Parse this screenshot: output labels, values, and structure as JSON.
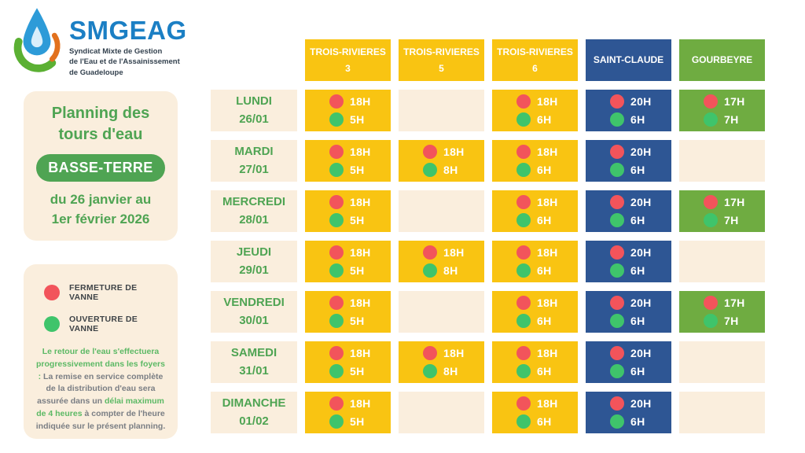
{
  "logo": {
    "brand": "SMGEAG",
    "subtitle_line1": "Syndicat Mixte de Gestion",
    "subtitle_line2": "de l'Eau et de l'Assainissement",
    "subtitle_line3": "de Guadeloupe"
  },
  "panel": {
    "title_line1": "Planning des",
    "title_line2": "tours d'eau",
    "region_badge": "BASSE-TERRE",
    "dates_line1": "du 26 janvier au",
    "dates_line2": "1er février 2026"
  },
  "legend": {
    "closed_label": "FERMETURE DE VANNE",
    "open_label": "OUVERTURE DE VANNE",
    "note_segments": [
      {
        "text": "Le retour de l'eau s'effectuera progressivement dans les foyers :",
        "emphasis": true
      },
      {
        "text": " La remise en service complète de la distribution d'eau sera assurée dans un ",
        "emphasis": false
      },
      {
        "text": "délai maximum de 4 heures",
        "emphasis": true
      },
      {
        "text": " à compter de l'heure indiquée sur le présent planning.",
        "emphasis": false
      }
    ]
  },
  "schedule": {
    "columns": [
      {
        "label_lines": [
          "TROIS-RIVIERES",
          "3"
        ],
        "color": "#F9C412"
      },
      {
        "label_lines": [
          "TROIS-RIVIERES",
          "5"
        ],
        "color": "#F9C412"
      },
      {
        "label_lines": [
          "TROIS-RIVIERES",
          "6"
        ],
        "color": "#F9C412"
      },
      {
        "label_lines": [
          "SAINT-CLAUDE"
        ],
        "color": "#2E5694"
      },
      {
        "label_lines": [
          "GOURBEYRE"
        ],
        "color": "#6FAC41"
      }
    ],
    "rows": [
      {
        "day": "LUNDI",
        "date": "26/01",
        "cells": [
          {
            "close": "18H",
            "open": "5H"
          },
          null,
          {
            "close": "18H",
            "open": "6H"
          },
          {
            "close": "20H",
            "open": "6H"
          },
          {
            "close": "17H",
            "open": "7H"
          }
        ]
      },
      {
        "day": "MARDI",
        "date": "27/01",
        "cells": [
          {
            "close": "18H",
            "open": "5H"
          },
          {
            "close": "18H",
            "open": "8H"
          },
          {
            "close": "18H",
            "open": "6H"
          },
          {
            "close": "20H",
            "open": "6H"
          },
          null
        ]
      },
      {
        "day": "MERCREDI",
        "date": "28/01",
        "cells": [
          {
            "close": "18H",
            "open": "5H"
          },
          null,
          {
            "close": "18H",
            "open": "6H"
          },
          {
            "close": "20H",
            "open": "6H"
          },
          {
            "close": "17H",
            "open": "7H"
          }
        ]
      },
      {
        "day": "JEUDI",
        "date": "29/01",
        "cells": [
          {
            "close": "18H",
            "open": "5H"
          },
          {
            "close": "18H",
            "open": "8H"
          },
          {
            "close": "18H",
            "open": "6H"
          },
          {
            "close": "20H",
            "open": "6H"
          },
          null
        ]
      },
      {
        "day": "VENDREDI",
        "date": "30/01",
        "cells": [
          {
            "close": "18H",
            "open": "5H"
          },
          null,
          {
            "close": "18H",
            "open": "6H"
          },
          {
            "close": "20H",
            "open": "6H"
          },
          {
            "close": "17H",
            "open": "7H"
          }
        ]
      },
      {
        "day": "SAMEDI",
        "date": "31/01",
        "cells": [
          {
            "close": "18H",
            "open": "5H"
          },
          {
            "close": "18H",
            "open": "8H"
          },
          {
            "close": "18H",
            "open": "6H"
          },
          {
            "close": "20H",
            "open": "6H"
          },
          null
        ]
      },
      {
        "day": "DIMANCHE",
        "date": "01/02",
        "cells": [
          {
            "close": "18H",
            "open": "5H"
          },
          null,
          {
            "close": "18H",
            "open": "6H"
          },
          {
            "close": "20H",
            "open": "6H"
          },
          null
        ]
      }
    ]
  },
  "colors": {
    "yellow": "#F9C412",
    "blue": "#2E5694",
    "green_column": "#6FAC41",
    "cream": "#FAEEDD",
    "valve_close": "#F2545B",
    "valve_open": "#3FC46B",
    "accent_green_text": "#4FA453",
    "brand_blue": "#1B7FC4"
  }
}
